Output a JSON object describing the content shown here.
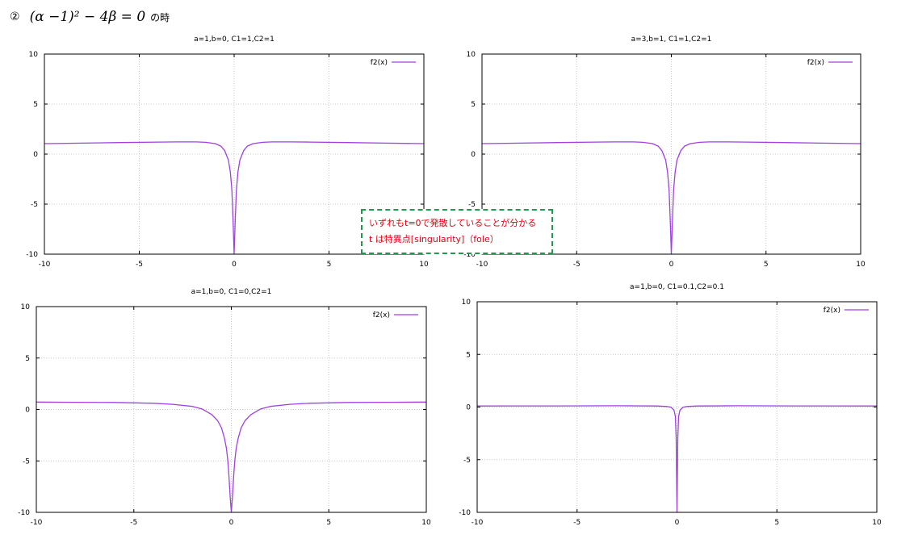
{
  "heading": {
    "number": "②",
    "formula": "(α −1)² − 4β = 0",
    "suffix": "の時"
  },
  "annotation": {
    "line1": "いずれもt=0で発散していることが分かる",
    "line2": "t は特異点[singularity]（fole）",
    "border_color": "#1e9a4e",
    "text_color": "#e60012"
  },
  "chart_data": [
    {
      "type": "line",
      "title": "a=1,b=0, C1=1,C2=1",
      "xlim": [
        -10,
        10
      ],
      "ylim": [
        -10,
        10
      ],
      "xticks": [
        "-10",
        "-5",
        "0",
        "5",
        "10"
      ],
      "yticks": [
        "-10",
        "-5",
        "0",
        "5",
        "10"
      ],
      "grid": true,
      "legend": "top-right",
      "series": [
        {
          "name": "f2(x)",
          "color": "#a040e0",
          "x": [
            -10,
            -8,
            -6,
            -4,
            -3,
            -2,
            -1.5,
            -1,
            -0.7,
            -0.5,
            -0.3,
            -0.2,
            -0.12,
            -0.06,
            0,
            0.06,
            0.12,
            0.2,
            0.3,
            0.5,
            0.7,
            1,
            1.5,
            2,
            3,
            4,
            6,
            8,
            10
          ],
          "y": [
            1.05,
            1.1,
            1.15,
            1.2,
            1.22,
            1.22,
            1.18,
            1.05,
            0.8,
            0.35,
            -0.6,
            -1.8,
            -3.6,
            -6.5,
            -10,
            -6.5,
            -3.6,
            -1.8,
            -0.6,
            0.35,
            0.8,
            1.05,
            1.18,
            1.22,
            1.22,
            1.2,
            1.15,
            1.1,
            1.05
          ]
        }
      ]
    },
    {
      "type": "line",
      "title": "a=3,b=1, C1=1,C2=1",
      "xlim": [
        -10,
        10
      ],
      "ylim": [
        -10,
        10
      ],
      "xticks": [
        "-10",
        "-5",
        "0",
        "5",
        "10"
      ],
      "yticks": [
        "-10",
        "-5",
        "0",
        "5",
        "10"
      ],
      "grid": true,
      "legend": "top-right",
      "series": [
        {
          "name": "f2(x)",
          "color": "#a040e0",
          "x": [
            -10,
            -8,
            -6,
            -4,
            -3,
            -2,
            -1.5,
            -1,
            -0.7,
            -0.5,
            -0.3,
            -0.2,
            -0.12,
            -0.06,
            0,
            0.06,
            0.12,
            0.2,
            0.3,
            0.5,
            0.7,
            1,
            1.5,
            2,
            3,
            4,
            6,
            8,
            10
          ],
          "y": [
            1.05,
            1.1,
            1.15,
            1.2,
            1.22,
            1.22,
            1.18,
            1.05,
            0.8,
            0.35,
            -0.6,
            -1.8,
            -3.6,
            -6.5,
            -10,
            -6.5,
            -3.6,
            -1.8,
            -0.6,
            0.35,
            0.8,
            1.05,
            1.18,
            1.22,
            1.22,
            1.2,
            1.15,
            1.1,
            1.05
          ]
        }
      ]
    },
    {
      "type": "line",
      "title": "a=1,b=0, C1=0,C2=1",
      "xlim": [
        -10,
        10
      ],
      "ylim": [
        -10,
        10
      ],
      "xticks": [
        "-10",
        "-5",
        "0",
        "5",
        "10"
      ],
      "yticks": [
        "-10",
        "-5",
        "0",
        "5",
        "10"
      ],
      "grid": true,
      "legend": "top-right",
      "series": [
        {
          "name": "f2(x)",
          "color": "#a040e0",
          "x": [
            -10,
            -8,
            -6,
            -4,
            -3,
            -2,
            -1.5,
            -1,
            -0.7,
            -0.5,
            -0.35,
            -0.25,
            -0.18,
            -0.12,
            -0.06,
            0,
            0.06,
            0.12,
            0.18,
            0.25,
            0.35,
            0.5,
            0.7,
            1,
            1.5,
            2,
            3,
            4,
            6,
            8,
            10
          ],
          "y": [
            0.72,
            0.7,
            0.68,
            0.6,
            0.5,
            0.3,
            0.05,
            -0.5,
            -1.1,
            -1.8,
            -2.8,
            -3.8,
            -5,
            -6.5,
            -8.5,
            -10,
            -8.5,
            -6.5,
            -5,
            -3.8,
            -2.8,
            -1.8,
            -1.1,
            -0.5,
            0.05,
            0.3,
            0.5,
            0.6,
            0.68,
            0.7,
            0.72
          ]
        }
      ]
    },
    {
      "type": "line",
      "title": "a=1,b=0, C1=0.1,C2=0.1",
      "xlim": [
        -10,
        10
      ],
      "ylim": [
        -10,
        10
      ],
      "xticks": [
        "-10",
        "-5",
        "0",
        "5",
        "10"
      ],
      "yticks": [
        "-10",
        "-5",
        "0",
        "5",
        "10"
      ],
      "grid": true,
      "legend": "top-right",
      "series": [
        {
          "name": "f2(x)",
          "color": "#a040e0",
          "x": [
            -10,
            -6,
            -3,
            -1,
            -0.5,
            -0.3,
            -0.15,
            -0.08,
            -0.04,
            0,
            0.04,
            0.08,
            0.15,
            0.3,
            0.5,
            1,
            3,
            6,
            10
          ],
          "y": [
            0.1,
            0.11,
            0.12,
            0.1,
            0.05,
            -0.02,
            -0.3,
            -0.9,
            -3,
            -10,
            -3,
            -0.9,
            -0.3,
            -0.02,
            0.05,
            0.1,
            0.12,
            0.11,
            0.1
          ]
        }
      ]
    }
  ]
}
